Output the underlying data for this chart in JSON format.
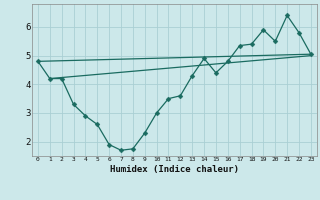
{
  "xlabel": "Humidex (Indice chaleur)",
  "ylabel": "",
  "bg_color": "#cce8ea",
  "line_color": "#1a6b60",
  "grid_color": "#aacfd4",
  "xlim": [
    -0.5,
    23.5
  ],
  "ylim": [
    1.5,
    6.8
  ],
  "yticks": [
    2,
    3,
    4,
    5,
    6
  ],
  "xticks": [
    0,
    1,
    2,
    3,
    4,
    5,
    6,
    7,
    8,
    9,
    10,
    11,
    12,
    13,
    14,
    15,
    16,
    17,
    18,
    19,
    20,
    21,
    22,
    23
  ],
  "line1_x": [
    0,
    1,
    2,
    3,
    4,
    5,
    6,
    7,
    8,
    9,
    10,
    11,
    12,
    13,
    14,
    15,
    16,
    17,
    18,
    19,
    20,
    21,
    22,
    23
  ],
  "line1_y": [
    4.8,
    4.2,
    4.2,
    3.3,
    2.9,
    2.6,
    1.9,
    1.7,
    1.75,
    2.3,
    3.0,
    3.5,
    3.6,
    4.3,
    4.9,
    4.4,
    4.8,
    5.35,
    5.4,
    5.9,
    5.5,
    6.4,
    5.8,
    5.05
  ],
  "line2_x": [
    0,
    23
  ],
  "line2_y": [
    4.8,
    5.05
  ],
  "line3_x": [
    1,
    23
  ],
  "line3_y": [
    4.2,
    5.0
  ]
}
